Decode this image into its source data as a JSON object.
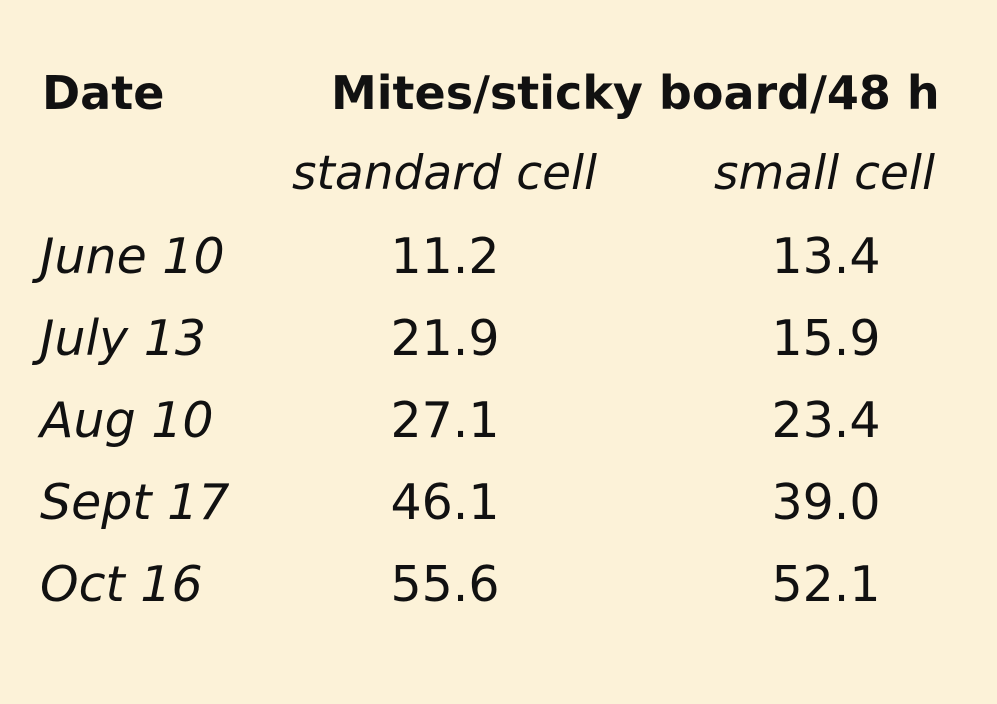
{
  "table": {
    "headers": {
      "date": "Date",
      "measure": "Mites/sticky board/48 h",
      "standard": "standard cell",
      "small": "small cell"
    },
    "rows": [
      {
        "date": "June 10",
        "standard": "11.2",
        "small": "13.4"
      },
      {
        "date": "July 13",
        "standard": "21.9",
        "small": "15.9"
      },
      {
        "date": "Aug 10",
        "standard": "27.1",
        "small": "23.4"
      },
      {
        "date": "Sept 17",
        "standard": "46.1",
        "small": "39.0"
      },
      {
        "date": "Oct 16",
        "standard": "55.6",
        "small": "52.1"
      }
    ]
  },
  "colors": {
    "background": "#fcf2d8",
    "text": "#111111"
  }
}
